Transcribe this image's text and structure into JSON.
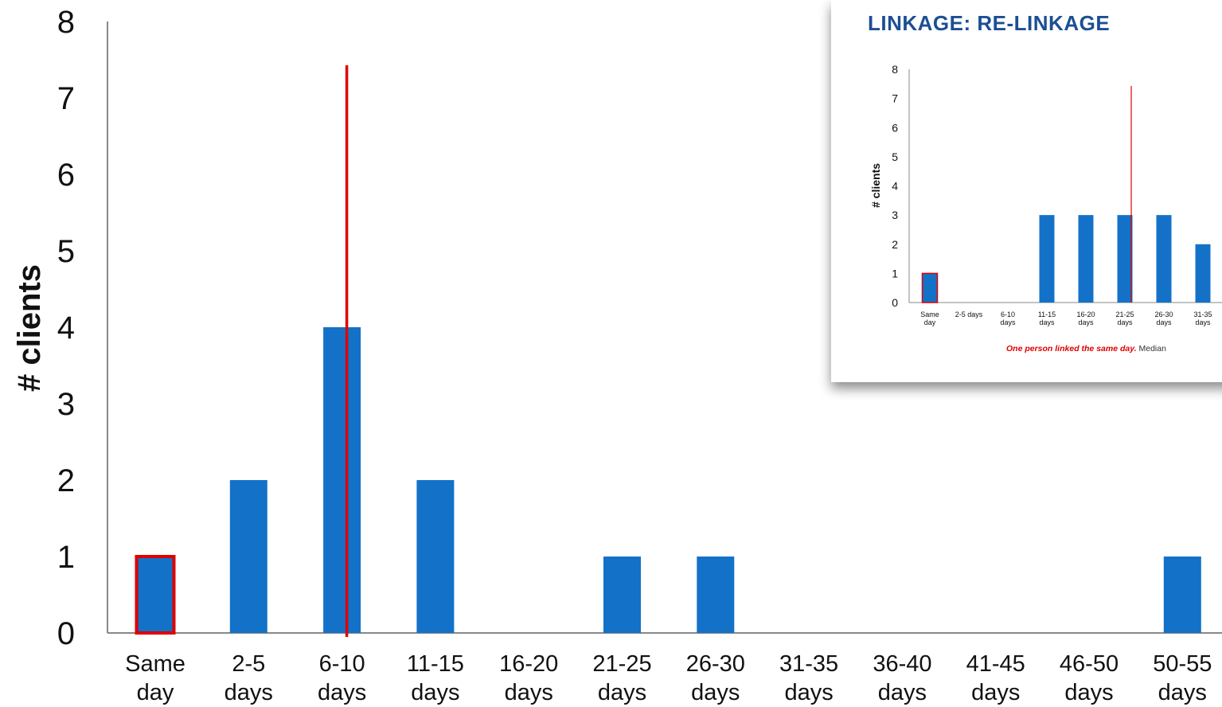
{
  "chart_data": [
    {
      "type": "bar",
      "ylabel": "# clients",
      "ylim": [
        0,
        8
      ],
      "yticks": [
        0,
        1,
        2,
        3,
        4,
        5,
        6,
        7,
        8
      ],
      "categories": [
        [
          "Same",
          "day"
        ],
        [
          "2-5",
          "days"
        ],
        [
          "6-10",
          "days"
        ],
        [
          "11-15",
          "days"
        ],
        [
          "16-20",
          "days"
        ],
        [
          "21-25",
          "days"
        ],
        [
          "26-30",
          "days"
        ],
        [
          "31-35",
          "days"
        ],
        [
          "36-40",
          "days"
        ],
        [
          "41-45",
          "days"
        ],
        [
          "46-50",
          "days"
        ],
        [
          "50-55",
          "days"
        ]
      ],
      "values": [
        1,
        2,
        4,
        2,
        0,
        1,
        1,
        0,
        0,
        0,
        0,
        1
      ],
      "highlighted_category": "Same day",
      "median_line_at_category": "6-10 days",
      "bar_color": "#1372c8",
      "highlight_color": "#e00000",
      "median_line_color": "#e00000"
    },
    {
      "type": "bar",
      "title": "LINKAGE: RE-LINKAGE",
      "ylabel": "# clients",
      "ylim": [
        0,
        8
      ],
      "yticks": [
        0,
        1,
        2,
        3,
        4,
        5,
        6,
        7,
        8
      ],
      "categories": [
        [
          "Same",
          "day"
        ],
        [
          "2-5 days"
        ],
        [
          "6-10",
          "days"
        ],
        [
          "11-15",
          "days"
        ],
        [
          "16-20",
          "days"
        ],
        [
          "21-25",
          "days"
        ],
        [
          "26-30",
          "days"
        ],
        [
          "31-35",
          "days"
        ]
      ],
      "values": [
        1,
        0,
        0,
        3,
        3,
        3,
        3,
        2
      ],
      "highlighted_category": "Same day",
      "median_line_at_category": "21-25 days",
      "caption_red": "One person linked the same day.",
      "caption_rest": " Median",
      "bar_color": "#1372c8",
      "highlight_color": "#e00000",
      "median_line_color": "#e00000"
    }
  ]
}
